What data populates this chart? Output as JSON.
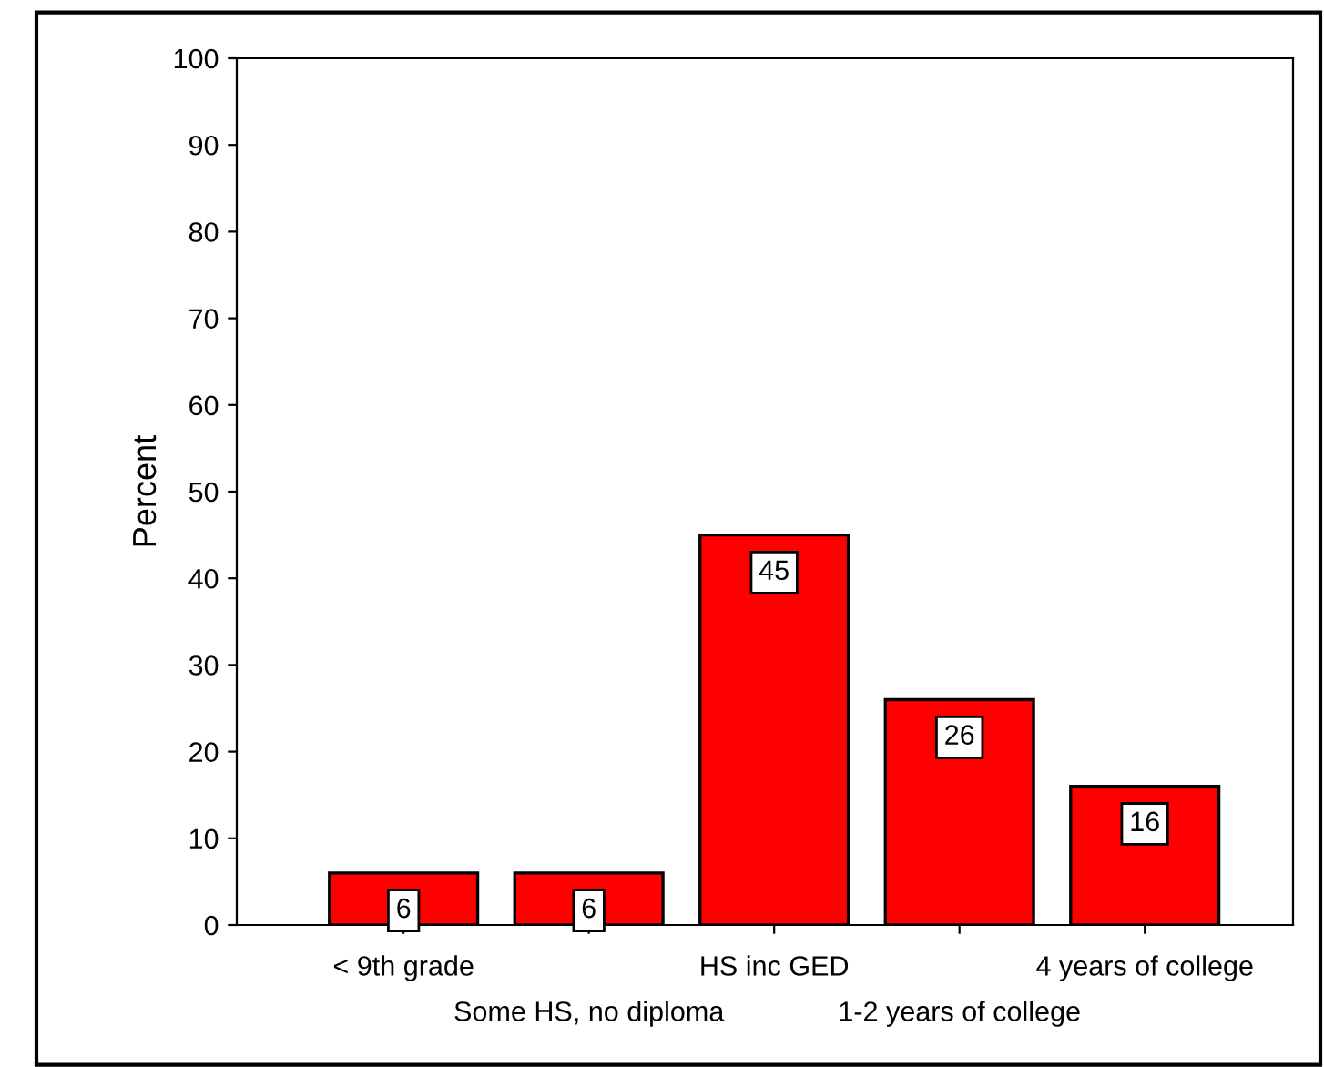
{
  "chart_data": {
    "type": "bar",
    "ylabel": "Percent",
    "categories": [
      "< 9th grade",
      "Some HS, no diploma",
      "HS inc GED",
      "1-2 years of college",
      "4 years of college"
    ],
    "values": [
      6,
      6,
      45,
      26,
      16
    ],
    "color": "#ff0000",
    "ylim": [
      0,
      100
    ],
    "yticks": [
      0,
      10,
      20,
      30,
      40,
      50,
      60,
      70,
      80,
      90,
      100
    ],
    "data_labels": true,
    "grid": false,
    "legend": false
  }
}
